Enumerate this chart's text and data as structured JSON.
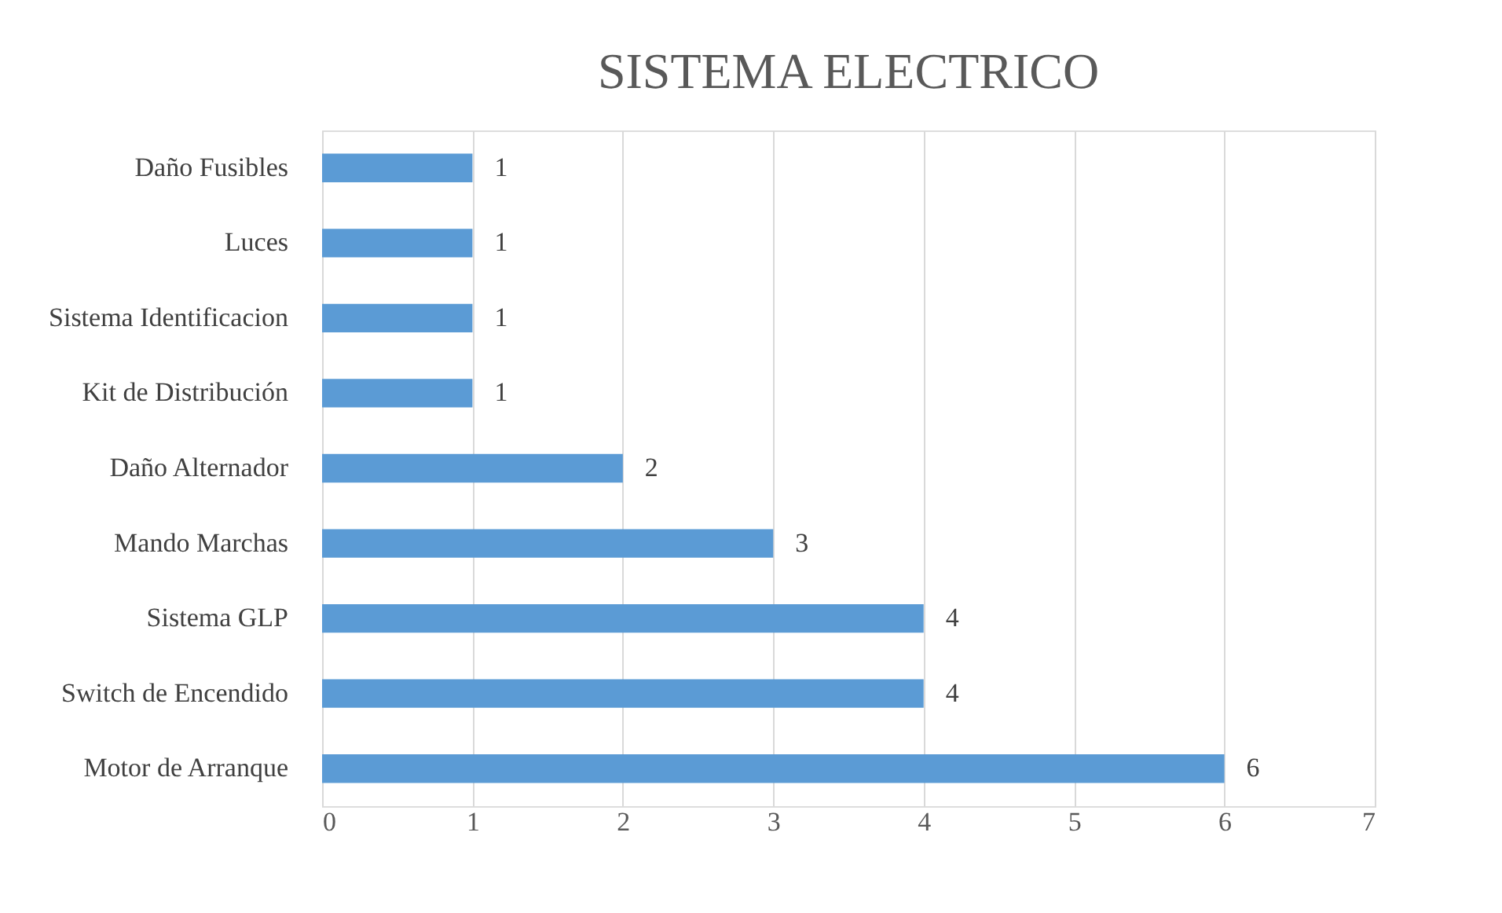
{
  "chart_data": {
    "type": "bar",
    "orientation": "horizontal",
    "title": "SISTEMA ELECTRICO",
    "categories": [
      "Daño Fusibles",
      "Luces",
      "Sistema Identificacion",
      "Kit de Distribución",
      "Daño Alternador",
      "Mando Marchas",
      "Sistema GLP",
      "Switch de Encendido",
      "Motor de Arranque"
    ],
    "values": [
      1,
      1,
      1,
      1,
      2,
      3,
      4,
      4,
      6
    ],
    "color": "#5b9bd5",
    "xlim": [
      0,
      7
    ],
    "xticks": [
      0,
      1,
      2,
      3,
      4,
      5,
      6,
      7
    ],
    "grid": "x",
    "data_labels": true
  }
}
